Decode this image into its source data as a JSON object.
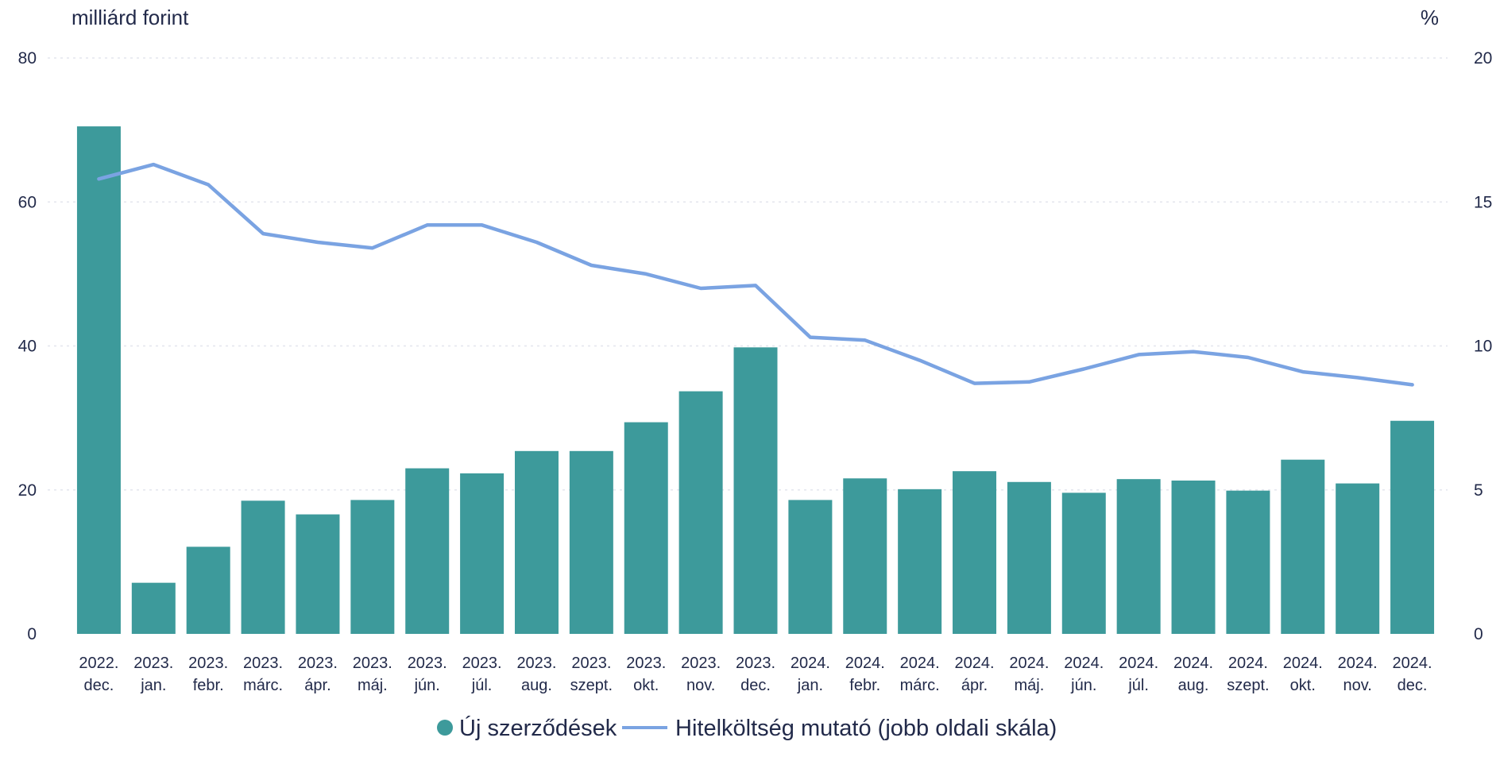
{
  "chart_data": {
    "type": "bar",
    "left_axis_unit": "milliárd forint",
    "right_axis_unit": "%",
    "categories": [
      [
        "2022.",
        "dec."
      ],
      [
        "2023.",
        "jan."
      ],
      [
        "2023.",
        "febr."
      ],
      [
        "2023.",
        "márc."
      ],
      [
        "2023.",
        "ápr."
      ],
      [
        "2023.",
        "máj."
      ],
      [
        "2023.",
        "jún."
      ],
      [
        "2023.",
        "júl."
      ],
      [
        "2023.",
        "aug."
      ],
      [
        "2023.",
        "szept."
      ],
      [
        "2023.",
        "okt."
      ],
      [
        "2023.",
        "nov."
      ],
      [
        "2023.",
        "dec."
      ],
      [
        "2024.",
        "jan."
      ],
      [
        "2024.",
        "febr."
      ],
      [
        "2024.",
        "márc."
      ],
      [
        "2024.",
        "ápr."
      ],
      [
        "2024.",
        "máj."
      ],
      [
        "2024.",
        "jún."
      ],
      [
        "2024.",
        "júl."
      ],
      [
        "2024.",
        "aug."
      ],
      [
        "2024.",
        "szept."
      ],
      [
        "2024.",
        "okt."
      ],
      [
        "2024.",
        "nov."
      ],
      [
        "2024.",
        "dec."
      ]
    ],
    "series": [
      {
        "name": "Új szerződések",
        "kind": "bar",
        "axis": "left",
        "color": "#3d9a9b",
        "values": [
          70.5,
          7.1,
          12.1,
          18.5,
          16.6,
          18.6,
          23.0,
          22.3,
          25.4,
          25.4,
          29.4,
          33.7,
          39.8,
          18.6,
          21.6,
          20.1,
          22.6,
          21.1,
          19.6,
          21.5,
          21.3,
          19.9,
          24.2,
          20.9,
          29.6
        ]
      },
      {
        "name": "Hitelköltség mutató (jobb oldali skála)",
        "kind": "line",
        "axis": "right",
        "color": "#7aa3e2",
        "values": [
          15.8,
          16.3,
          15.6,
          13.9,
          13.6,
          13.4,
          14.2,
          14.2,
          13.6,
          12.8,
          12.5,
          12.0,
          12.1,
          10.3,
          10.2,
          9.5,
          8.7,
          8.75,
          9.2,
          9.7,
          9.8,
          9.6,
          9.1,
          8.9,
          8.65
        ]
      }
    ],
    "y_left": {
      "min": 0,
      "max": 80,
      "ticks": [
        "0",
        "20",
        "40",
        "60",
        "80"
      ]
    },
    "y_right": {
      "min": 0,
      "max": 20,
      "ticks": [
        "0",
        "5",
        "10",
        "15",
        "20"
      ]
    },
    "grid": true,
    "legend_position": "bottom-center"
  }
}
